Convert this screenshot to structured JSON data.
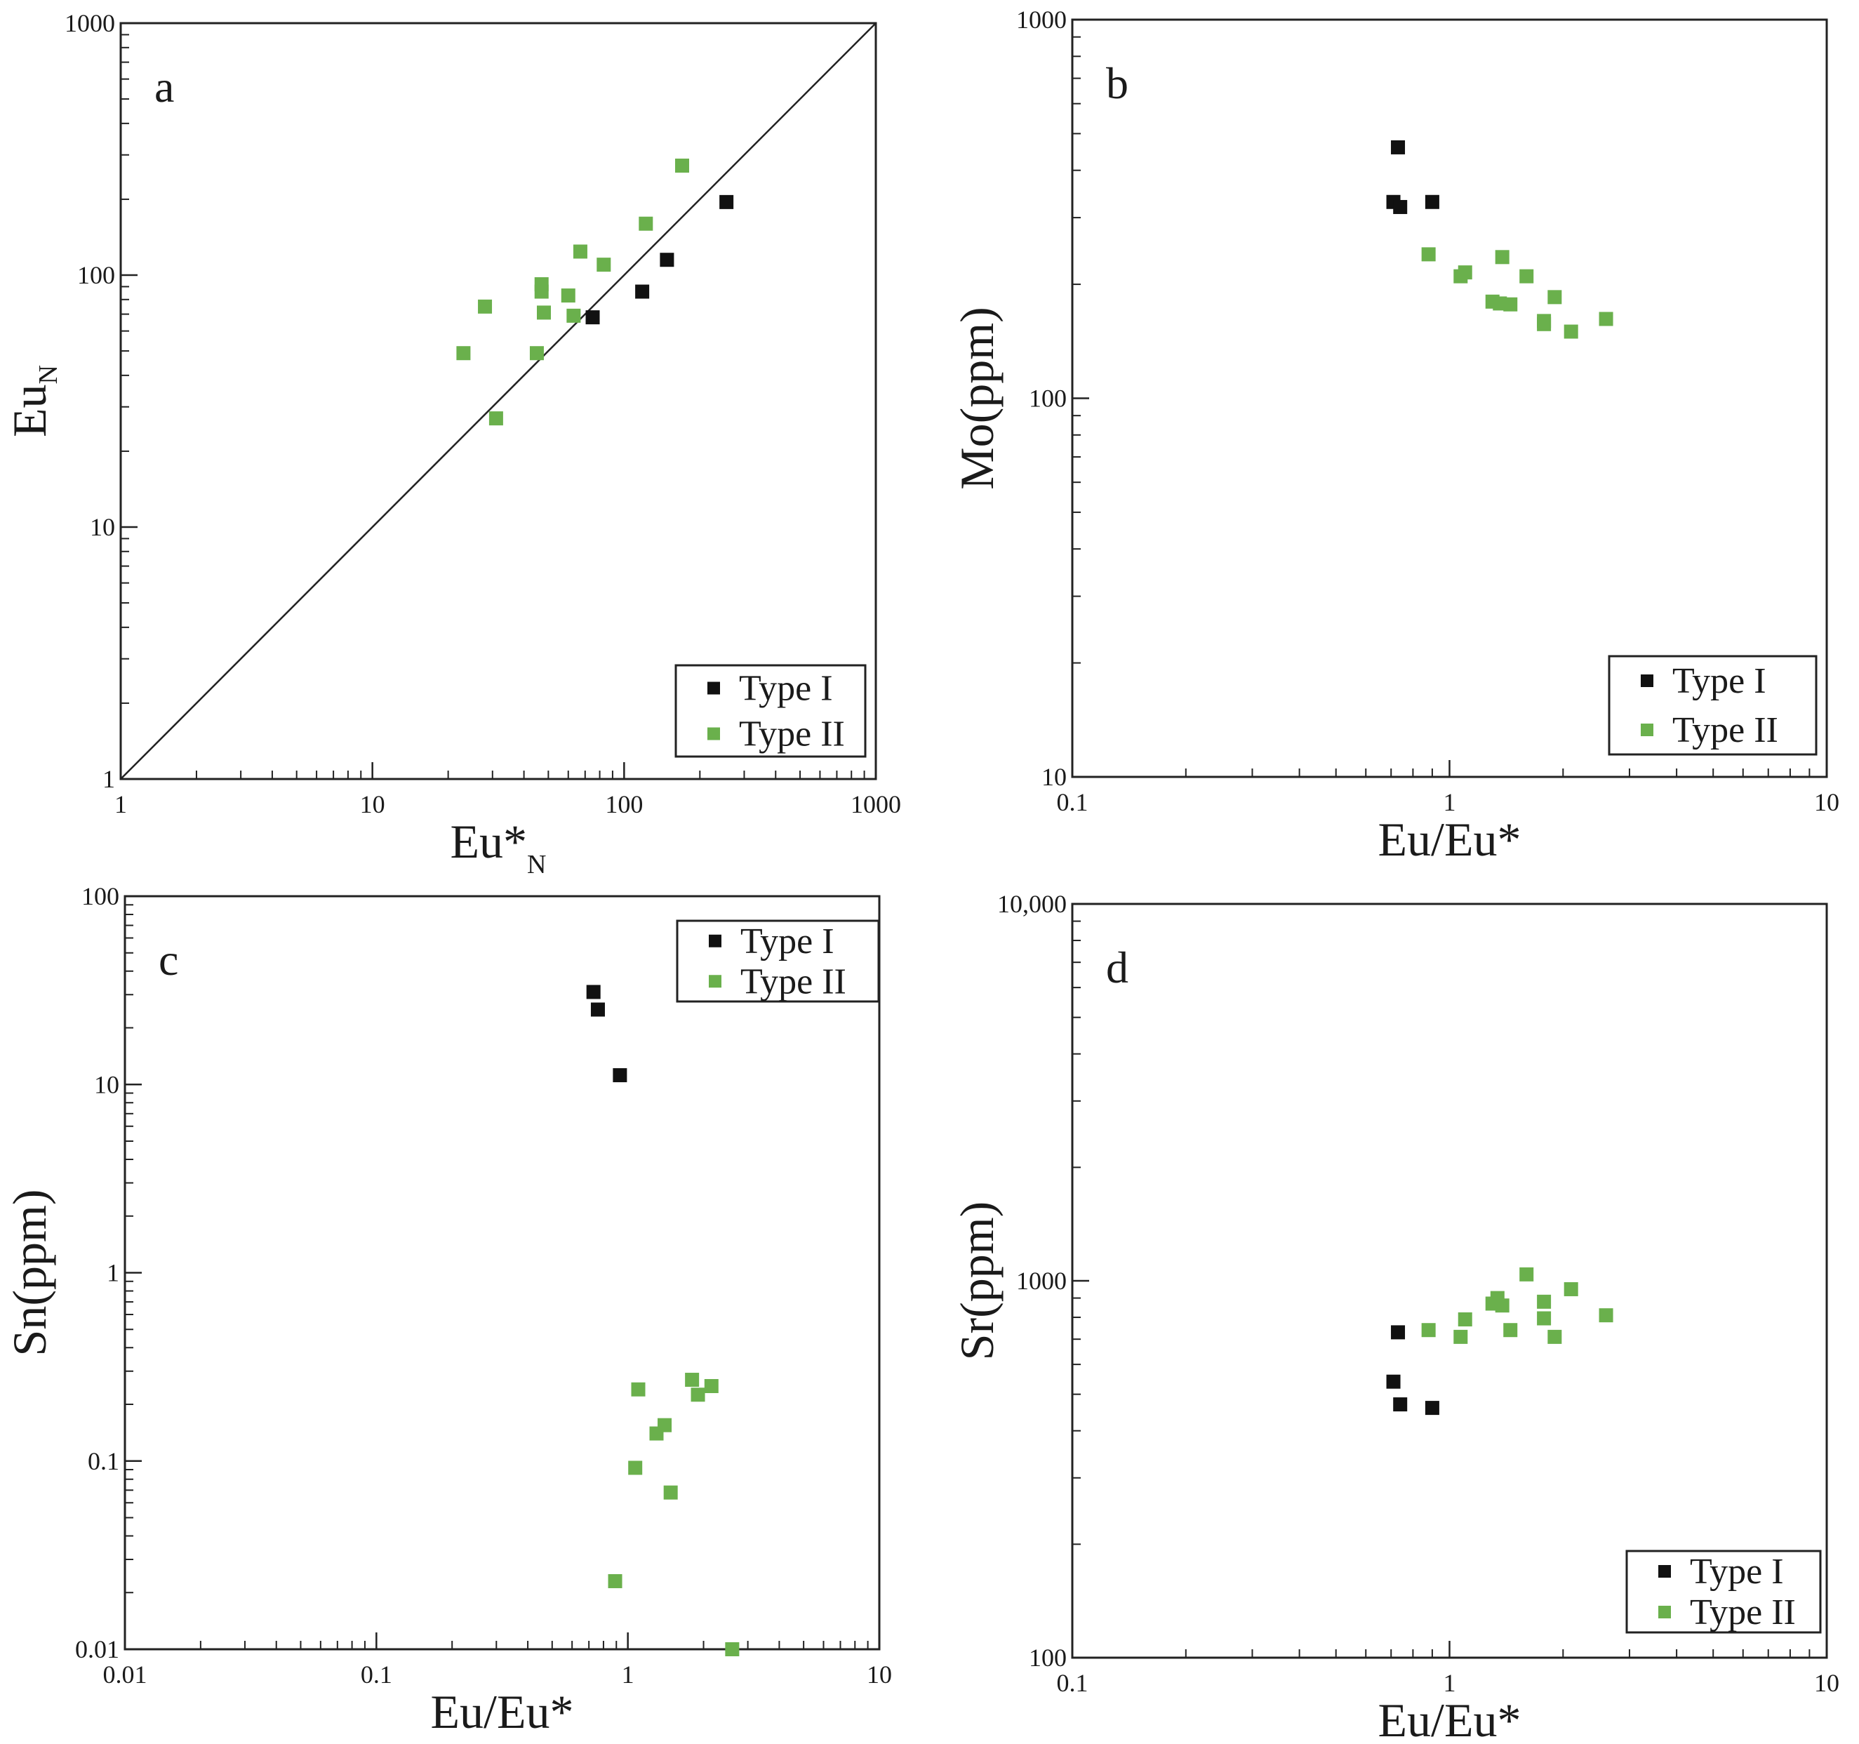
{
  "colors": {
    "type1": "#111111",
    "type2": "#6ab04c",
    "frame": "#222222",
    "background": "#ffffff"
  },
  "legend": {
    "type1_label": "Type I",
    "type2_label": "Type II"
  },
  "chart_data": [
    {
      "id": "a",
      "type": "scatter",
      "panel_label": "a",
      "xscale": "log",
      "yscale": "log",
      "xlim": [
        1,
        1000
      ],
      "ylim": [
        1,
        1000
      ],
      "xlabel": "Eu*",
      "xlabel_sub": "N",
      "ylabel": "Eu",
      "ylabel_sub": "N",
      "xticks": [
        1,
        10,
        100,
        1000
      ],
      "xtick_labels": [
        "1",
        "10",
        "100",
        "1000"
      ],
      "yticks": [
        1,
        10,
        100,
        1000
      ],
      "ytick_labels": [
        "1",
        "10",
        "100",
        "1000"
      ],
      "reference_line": {
        "from": [
          1,
          1
        ],
        "to": [
          1000,
          1000
        ]
      },
      "legend_position": "bottom-right",
      "series": [
        {
          "name": "Type I",
          "points": [
            [
              75,
              68
            ],
            [
              118,
              86
            ],
            [
              148,
              115
            ],
            [
              255,
              195
            ]
          ]
        },
        {
          "name": "Type II",
          "points": [
            [
              23,
              49
            ],
            [
              28,
              75
            ],
            [
              31,
              27
            ],
            [
              45,
              49
            ],
            [
              47,
              92
            ],
            [
              47,
              86
            ],
            [
              48,
              71
            ],
            [
              60,
              83
            ],
            [
              63,
              69
            ],
            [
              67,
              124
            ],
            [
              83,
              110
            ],
            [
              122,
              160
            ],
            [
              170,
              272
            ]
          ]
        }
      ]
    },
    {
      "id": "b",
      "type": "scatter",
      "panel_label": "b",
      "xscale": "log",
      "yscale": "log",
      "xlim": [
        0.1,
        10
      ],
      "ylim": [
        10,
        1000
      ],
      "xlabel": "Eu/Eu*",
      "ylabel": "Mo(ppm)",
      "xticks": [
        0.1,
        1,
        10
      ],
      "xtick_labels": [
        "0.1",
        "1",
        "10"
      ],
      "yticks": [
        10,
        100,
        1000
      ],
      "ytick_labels": [
        "10",
        "100",
        "1000"
      ],
      "legend_position": "bottom-right",
      "series": [
        {
          "name": "Type I",
          "points": [
            [
              0.71,
              330
            ],
            [
              0.73,
              460
            ],
            [
              0.74,
              320
            ],
            [
              0.9,
              330
            ]
          ]
        },
        {
          "name": "Type II",
          "points": [
            [
              0.88,
              240
            ],
            [
              1.07,
              210
            ],
            [
              1.1,
              215
            ],
            [
              1.3,
              180
            ],
            [
              1.36,
              178
            ],
            [
              1.38,
              236
            ],
            [
              1.45,
              177
            ],
            [
              1.6,
              210
            ],
            [
              1.78,
              160
            ],
            [
              1.78,
              157
            ],
            [
              1.9,
              185
            ],
            [
              2.1,
              150
            ],
            [
              2.6,
              162
            ]
          ]
        }
      ]
    },
    {
      "id": "c",
      "type": "scatter",
      "panel_label": "c",
      "xscale": "log",
      "yscale": "log",
      "xlim": [
        0.01,
        10
      ],
      "ylim": [
        0.01,
        100
      ],
      "xlabel": "Eu/Eu*",
      "ylabel": "Sn(ppm)",
      "xticks": [
        0.01,
        0.1,
        1,
        10
      ],
      "xtick_labels": [
        "0.01",
        "0.1",
        "1",
        "10"
      ],
      "yticks": [
        0.01,
        0.1,
        1,
        10,
        100
      ],
      "ytick_labels": [
        "0.01",
        "0.1",
        "1",
        "10",
        "100"
      ],
      "legend_position": "top-right",
      "series": [
        {
          "name": "Type I",
          "points": [
            [
              0.73,
              31
            ],
            [
              0.76,
              25
            ],
            [
              0.93,
              11.2
            ]
          ]
        },
        {
          "name": "Type II",
          "points": [
            [
              0.89,
              0.023
            ],
            [
              1.07,
              0.092
            ],
            [
              1.1,
              0.24
            ],
            [
              1.3,
              0.14
            ],
            [
              1.4,
              0.155
            ],
            [
              1.48,
              0.068
            ],
            [
              1.8,
              0.27
            ],
            [
              1.9,
              0.225
            ],
            [
              2.15,
              0.25
            ],
            [
              2.6,
              0.01
            ]
          ]
        }
      ]
    },
    {
      "id": "d",
      "type": "scatter",
      "panel_label": "d",
      "xscale": "log",
      "yscale": "log",
      "xlim": [
        0.1,
        10
      ],
      "ylim": [
        100,
        10000
      ],
      "xlabel": "Eu/Eu*",
      "ylabel": "Sr(ppm)",
      "xticks": [
        0.1,
        1,
        10
      ],
      "xtick_labels": [
        "0.1",
        "1",
        "10"
      ],
      "yticks": [
        100,
        1000,
        10000
      ],
      "ytick_labels": [
        "100",
        "1000",
        "10,000"
      ],
      "legend_position": "bottom-right",
      "series": [
        {
          "name": "Type I",
          "points": [
            [
              0.71,
              540
            ],
            [
              0.73,
              730
            ],
            [
              0.74,
              470
            ],
            [
              0.9,
              460
            ]
          ]
        },
        {
          "name": "Type II",
          "points": [
            [
              0.88,
              740
            ],
            [
              1.07,
              710
            ],
            [
              1.1,
              790
            ],
            [
              1.3,
              870
            ],
            [
              1.34,
              900
            ],
            [
              1.38,
              860
            ],
            [
              1.45,
              740
            ],
            [
              1.6,
              1040
            ],
            [
              1.78,
              880
            ],
            [
              1.78,
              795
            ],
            [
              1.9,
              710
            ],
            [
              2.1,
              950
            ],
            [
              2.6,
              810
            ]
          ]
        }
      ]
    }
  ]
}
